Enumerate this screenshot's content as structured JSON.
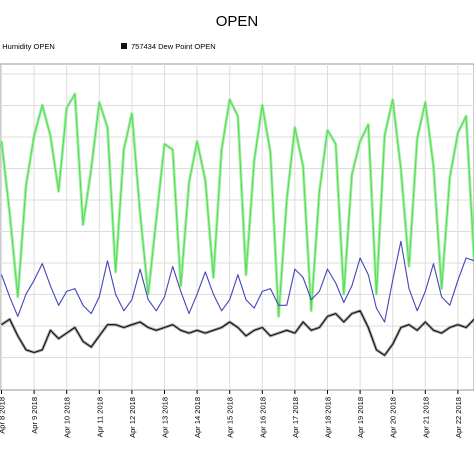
{
  "chart_data": {
    "type": "line",
    "title": "OPEN",
    "xlabel": "",
    "ylabel": "",
    "grid": true,
    "legend_position": "top-left",
    "legend": [
      {
        "series": "humidity",
        "label": "4  Humidity OPEN"
      },
      {
        "series": "dewpoint",
        "label": "757434  Dew Point OPEN"
      }
    ],
    "x_ticks": [
      "Apr 8 2018",
      "Apr 9 2018",
      "Apr 10 2018",
      "Apr 11 2018",
      "Apr 12 2018",
      "Apr 13 2018",
      "Apr 14 2018",
      "Apr 15 2018",
      "Apr 16 2018",
      "Apr 17 2018",
      "Apr 18 2018",
      "Apr 19 2018",
      "Apr 20 2018",
      "Apr 21 2018",
      "Apr 22 2018"
    ],
    "x_range": [
      "Apr 8 2018",
      "Apr 22 2018 12:00"
    ],
    "series": [
      {
        "key": "humidity",
        "color": "#55dd55",
        "highlight": "#aaeeaa",
        "values": [
          [
            "Apr 8 2018 00:00",
            0.83
          ],
          [
            "Apr 8 2018 06:00",
            0.57
          ],
          [
            "Apr 8 2018 12:00",
            0.27
          ],
          [
            "Apr 8 2018 18:00",
            0.67
          ],
          [
            "Apr 9 2018 00:00",
            0.85
          ],
          [
            "Apr 9 2018 06:00",
            0.96
          ],
          [
            "Apr 9 2018 12:00",
            0.85
          ],
          [
            "Apr 9 2018 18:00",
            0.65
          ],
          [
            "Apr 10 2018 00:00",
            0.95
          ],
          [
            "Apr 10 2018 06:00",
            1.0
          ],
          [
            "Apr 10 2018 12:00",
            0.53
          ],
          [
            "Apr 10 2018 18:00",
            0.73
          ],
          [
            "Apr 11 2018 00:00",
            0.97
          ],
          [
            "Apr 11 2018 06:00",
            0.88
          ],
          [
            "Apr 11 2018 12:00",
            0.36
          ],
          [
            "Apr 11 2018 18:00",
            0.8
          ],
          [
            "Apr 12 2018 00:00",
            0.93
          ],
          [
            "Apr 12 2018 06:00",
            0.57
          ],
          [
            "Apr 12 2018 12:00",
            0.28
          ],
          [
            "Apr 12 2018 18:00",
            0.55
          ],
          [
            "Apr 13 2018 00:00",
            0.82
          ],
          [
            "Apr 13 2018 06:00",
            0.8
          ],
          [
            "Apr 13 2018 12:00",
            0.31
          ],
          [
            "Apr 13 2018 18:00",
            0.68
          ],
          [
            "Apr 14 2018 00:00",
            0.83
          ],
          [
            "Apr 14 2018 06:00",
            0.69
          ],
          [
            "Apr 14 2018 12:00",
            0.34
          ],
          [
            "Apr 14 2018 18:00",
            0.8
          ],
          [
            "Apr 15 2018 00:00",
            0.98
          ],
          [
            "Apr 15 2018 06:00",
            0.92
          ],
          [
            "Apr 15 2018 12:00",
            0.35
          ],
          [
            "Apr 15 2018 18:00",
            0.76
          ],
          [
            "Apr 16 2018 00:00",
            0.96
          ],
          [
            "Apr 16 2018 06:00",
            0.79
          ],
          [
            "Apr 16 2018 12:00",
            0.2
          ],
          [
            "Apr 16 2018 18:00",
            0.62
          ],
          [
            "Apr 17 2018 00:00",
            0.88
          ],
          [
            "Apr 17 2018 06:00",
            0.74
          ],
          [
            "Apr 17 2018 12:00",
            0.22
          ],
          [
            "Apr 17 2018 18:00",
            0.65
          ],
          [
            "Apr 18 2018 00:00",
            0.87
          ],
          [
            "Apr 18 2018 06:00",
            0.82
          ],
          [
            "Apr 18 2018 12:00",
            0.28
          ],
          [
            "Apr 18 2018 18:00",
            0.71
          ],
          [
            "Apr 19 2018 00:00",
            0.83
          ],
          [
            "Apr 19 2018 06:00",
            0.89
          ],
          [
            "Apr 19 2018 12:00",
            0.28
          ],
          [
            "Apr 19 2018 18:00",
            0.85
          ],
          [
            "Apr 20 2018 00:00",
            0.98
          ],
          [
            "Apr 20 2018 06:00",
            0.73
          ],
          [
            "Apr 20 2018 12:00",
            0.38
          ],
          [
            "Apr 20 2018 18:00",
            0.84
          ],
          [
            "Apr 21 2018 00:00",
            0.97
          ],
          [
            "Apr 21 2018 06:00",
            0.74
          ],
          [
            "Apr 21 2018 12:00",
            0.3
          ],
          [
            "Apr 21 2018 18:00",
            0.7
          ],
          [
            "Apr 22 2018 00:00",
            0.86
          ],
          [
            "Apr 22 2018 06:00",
            0.92
          ],
          [
            "Apr 22 2018 12:00",
            0.4
          ]
        ]
      },
      {
        "key": "blue",
        "color": "#4444bb",
        "values": [
          [
            "Apr 8 2018 00:00",
            0.35
          ],
          [
            "Apr 8 2018 06:00",
            0.27
          ],
          [
            "Apr 8 2018 12:00",
            0.2
          ],
          [
            "Apr 8 2018 18:00",
            0.28
          ],
          [
            "Apr 9 2018 00:00",
            0.33
          ],
          [
            "Apr 9 2018 06:00",
            0.39
          ],
          [
            "Apr 9 2018 12:00",
            0.31
          ],
          [
            "Apr 9 2018 18:00",
            0.24
          ],
          [
            "Apr 10 2018 00:00",
            0.29
          ],
          [
            "Apr 10 2018 06:00",
            0.3
          ],
          [
            "Apr 10 2018 12:00",
            0.24
          ],
          [
            "Apr 10 2018 18:00",
            0.21
          ],
          [
            "Apr 11 2018 00:00",
            0.27
          ],
          [
            "Apr 11 2018 06:00",
            0.4
          ],
          [
            "Apr 11 2018 12:00",
            0.28
          ],
          [
            "Apr 11 2018 18:00",
            0.22
          ],
          [
            "Apr 12 2018 00:00",
            0.26
          ],
          [
            "Apr 12 2018 06:00",
            0.37
          ],
          [
            "Apr 12 2018 12:00",
            0.26
          ],
          [
            "Apr 12 2018 18:00",
            0.22
          ],
          [
            "Apr 13 2018 00:00",
            0.27
          ],
          [
            "Apr 13 2018 06:00",
            0.38
          ],
          [
            "Apr 13 2018 12:00",
            0.29
          ],
          [
            "Apr 13 2018 18:00",
            0.21
          ],
          [
            "Apr 14 2018 00:00",
            0.28
          ],
          [
            "Apr 14 2018 06:00",
            0.36
          ],
          [
            "Apr 14 2018 12:00",
            0.28
          ],
          [
            "Apr 14 2018 18:00",
            0.22
          ],
          [
            "Apr 15 2018 00:00",
            0.26
          ],
          [
            "Apr 15 2018 06:00",
            0.35
          ],
          [
            "Apr 15 2018 12:00",
            0.26
          ],
          [
            "Apr 15 2018 18:00",
            0.23
          ],
          [
            "Apr 16 2018 00:00",
            0.29
          ],
          [
            "Apr 16 2018 06:00",
            0.3
          ],
          [
            "Apr 16 2018 12:00",
            0.24
          ],
          [
            "Apr 16 2018 18:00",
            0.24
          ],
          [
            "Apr 17 2018 00:00",
            0.37
          ],
          [
            "Apr 17 2018 06:00",
            0.34
          ],
          [
            "Apr 17 2018 12:00",
            0.26
          ],
          [
            "Apr 17 2018 18:00",
            0.29
          ],
          [
            "Apr 18 2018 00:00",
            0.37
          ],
          [
            "Apr 18 2018 06:00",
            0.32
          ],
          [
            "Apr 18 2018 12:00",
            0.25
          ],
          [
            "Apr 18 2018 18:00",
            0.31
          ],
          [
            "Apr 19 2018 00:00",
            0.41
          ],
          [
            "Apr 19 2018 06:00",
            0.35
          ],
          [
            "Apr 19 2018 12:00",
            0.23
          ],
          [
            "Apr 19 2018 18:00",
            0.18
          ],
          [
            "Apr 20 2018 00:00",
            0.33
          ],
          [
            "Apr 20 2018 06:00",
            0.47
          ],
          [
            "Apr 20 2018 12:00",
            0.3
          ],
          [
            "Apr 20 2018 18:00",
            0.22
          ],
          [
            "Apr 21 2018 00:00",
            0.29
          ],
          [
            "Apr 21 2018 06:00",
            0.39
          ],
          [
            "Apr 21 2018 12:00",
            0.27
          ],
          [
            "Apr 21 2018 18:00",
            0.24
          ],
          [
            "Apr 22 2018 00:00",
            0.33
          ],
          [
            "Apr 22 2018 06:00",
            0.41
          ],
          [
            "Apr 22 2018 12:00",
            0.4
          ]
        ]
      },
      {
        "key": "dewpoint",
        "color": "#111111",
        "highlight": "#aaaaaa",
        "values": [
          [
            "Apr 8 2018 00:00",
            0.17
          ],
          [
            "Apr 8 2018 06:00",
            0.19
          ],
          [
            "Apr 8 2018 12:00",
            0.13
          ],
          [
            "Apr 8 2018 18:00",
            0.08
          ],
          [
            "Apr 9 2018 00:00",
            0.07
          ],
          [
            "Apr 9 2018 06:00",
            0.08
          ],
          [
            "Apr 9 2018 12:00",
            0.15
          ],
          [
            "Apr 9 2018 18:00",
            0.12
          ],
          [
            "Apr 10 2018 00:00",
            0.14
          ],
          [
            "Apr 10 2018 06:00",
            0.16
          ],
          [
            "Apr 10 2018 12:00",
            0.11
          ],
          [
            "Apr 10 2018 18:00",
            0.09
          ],
          [
            "Apr 11 2018 00:00",
            0.13
          ],
          [
            "Apr 11 2018 06:00",
            0.17
          ],
          [
            "Apr 11 2018 12:00",
            0.17
          ],
          [
            "Apr 11 2018 18:00",
            0.16
          ],
          [
            "Apr 12 2018 00:00",
            0.17
          ],
          [
            "Apr 12 2018 06:00",
            0.18
          ],
          [
            "Apr 12 2018 12:00",
            0.16
          ],
          [
            "Apr 12 2018 18:00",
            0.15
          ],
          [
            "Apr 13 2018 00:00",
            0.16
          ],
          [
            "Apr 13 2018 06:00",
            0.17
          ],
          [
            "Apr 13 2018 12:00",
            0.15
          ],
          [
            "Apr 13 2018 18:00",
            0.14
          ],
          [
            "Apr 14 2018 00:00",
            0.15
          ],
          [
            "Apr 14 2018 06:00",
            0.14
          ],
          [
            "Apr 14 2018 12:00",
            0.15
          ],
          [
            "Apr 14 2018 18:00",
            0.16
          ],
          [
            "Apr 15 2018 00:00",
            0.18
          ],
          [
            "Apr 15 2018 06:00",
            0.16
          ],
          [
            "Apr 15 2018 12:00",
            0.13
          ],
          [
            "Apr 15 2018 18:00",
            0.15
          ],
          [
            "Apr 16 2018 00:00",
            0.16
          ],
          [
            "Apr 16 2018 06:00",
            0.13
          ],
          [
            "Apr 16 2018 12:00",
            0.14
          ],
          [
            "Apr 16 2018 18:00",
            0.15
          ],
          [
            "Apr 17 2018 00:00",
            0.14
          ],
          [
            "Apr 17 2018 06:00",
            0.18
          ],
          [
            "Apr 17 2018 12:00",
            0.15
          ],
          [
            "Apr 17 2018 18:00",
            0.16
          ],
          [
            "Apr 18 2018 00:00",
            0.2
          ],
          [
            "Apr 18 2018 06:00",
            0.21
          ],
          [
            "Apr 18 2018 12:00",
            0.18
          ],
          [
            "Apr 18 2018 18:00",
            0.21
          ],
          [
            "Apr 19 2018 00:00",
            0.22
          ],
          [
            "Apr 19 2018 06:00",
            0.16
          ],
          [
            "Apr 19 2018 12:00",
            0.08
          ],
          [
            "Apr 19 2018 18:00",
            0.06
          ],
          [
            "Apr 20 2018 00:00",
            0.1
          ],
          [
            "Apr 20 2018 06:00",
            0.16
          ],
          [
            "Apr 20 2018 12:00",
            0.17
          ],
          [
            "Apr 20 2018 18:00",
            0.15
          ],
          [
            "Apr 21 2018 00:00",
            0.18
          ],
          [
            "Apr 21 2018 06:00",
            0.15
          ],
          [
            "Apr 21 2018 12:00",
            0.14
          ],
          [
            "Apr 21 2018 18:00",
            0.16
          ],
          [
            "Apr 22 2018 00:00",
            0.17
          ],
          [
            "Apr 22 2018 06:00",
            0.16
          ],
          [
            "Apr 22 2018 12:00",
            0.19
          ]
        ]
      }
    ]
  }
}
